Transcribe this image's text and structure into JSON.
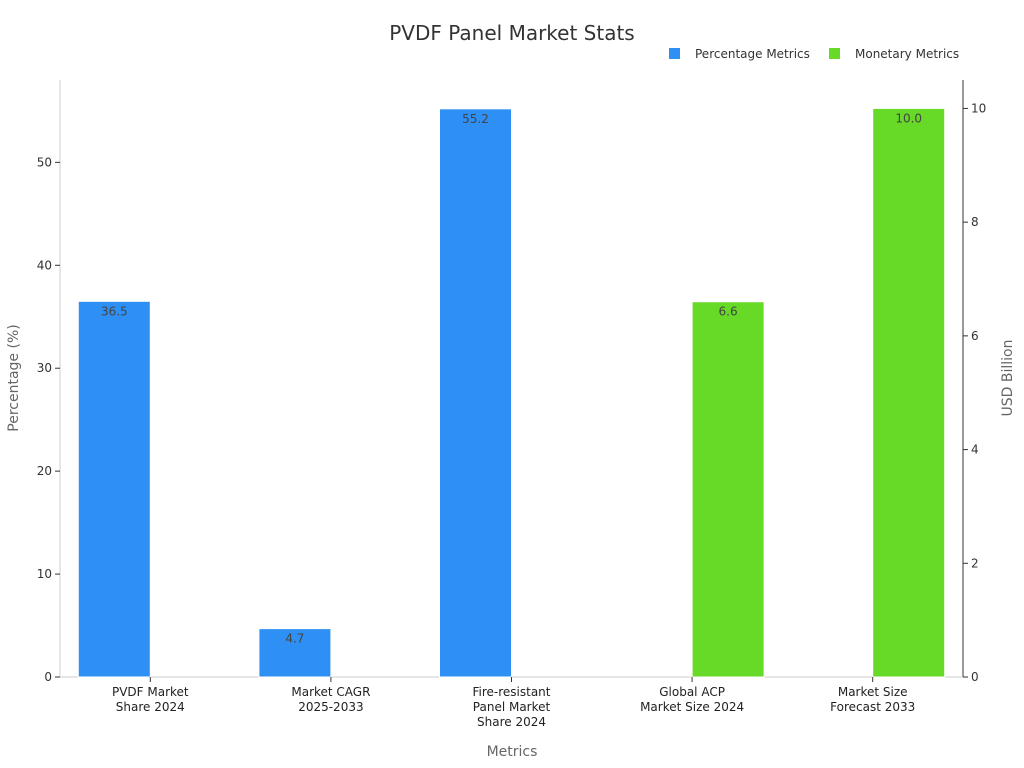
{
  "chart_data": {
    "type": "bar",
    "title": "PVDF Panel Market Stats",
    "xlabel": "Metrics",
    "ylabel_left": "Percentage (%)",
    "ylabel_right": "USD Billion",
    "ylim_left": [
      0,
      58
    ],
    "ylim_right": [
      0,
      10.5
    ],
    "yticks_left": [
      0,
      10,
      20,
      30,
      40,
      50
    ],
    "yticks_right": [
      0,
      2,
      4,
      6,
      8,
      10
    ],
    "categories": [
      [
        "PVDF Market",
        "Share 2024"
      ],
      [
        "Market CAGR",
        "2025-2033"
      ],
      [
        "Fire-resistant",
        "Panel Market",
        "Share 2024"
      ],
      [
        "Global ACP",
        "Market Size 2024"
      ],
      [
        "Market Size",
        "Forecast 2033"
      ]
    ],
    "series": [
      {
        "name": "Percentage Metrics",
        "axis": "left",
        "color": "#2e90f5",
        "values": [
          36.5,
          4.7,
          55.2,
          null,
          null
        ],
        "labels": [
          "36.5",
          "4.7",
          "55.2",
          "",
          ""
        ]
      },
      {
        "name": "Monetary Metrics",
        "axis": "right",
        "color": "#67d927",
        "values": [
          null,
          null,
          null,
          6.6,
          10.0
        ],
        "labels": [
          "",
          "",
          "",
          "6.6",
          "10.0"
        ]
      }
    ],
    "legend_position": "top-right",
    "grid": false
  }
}
